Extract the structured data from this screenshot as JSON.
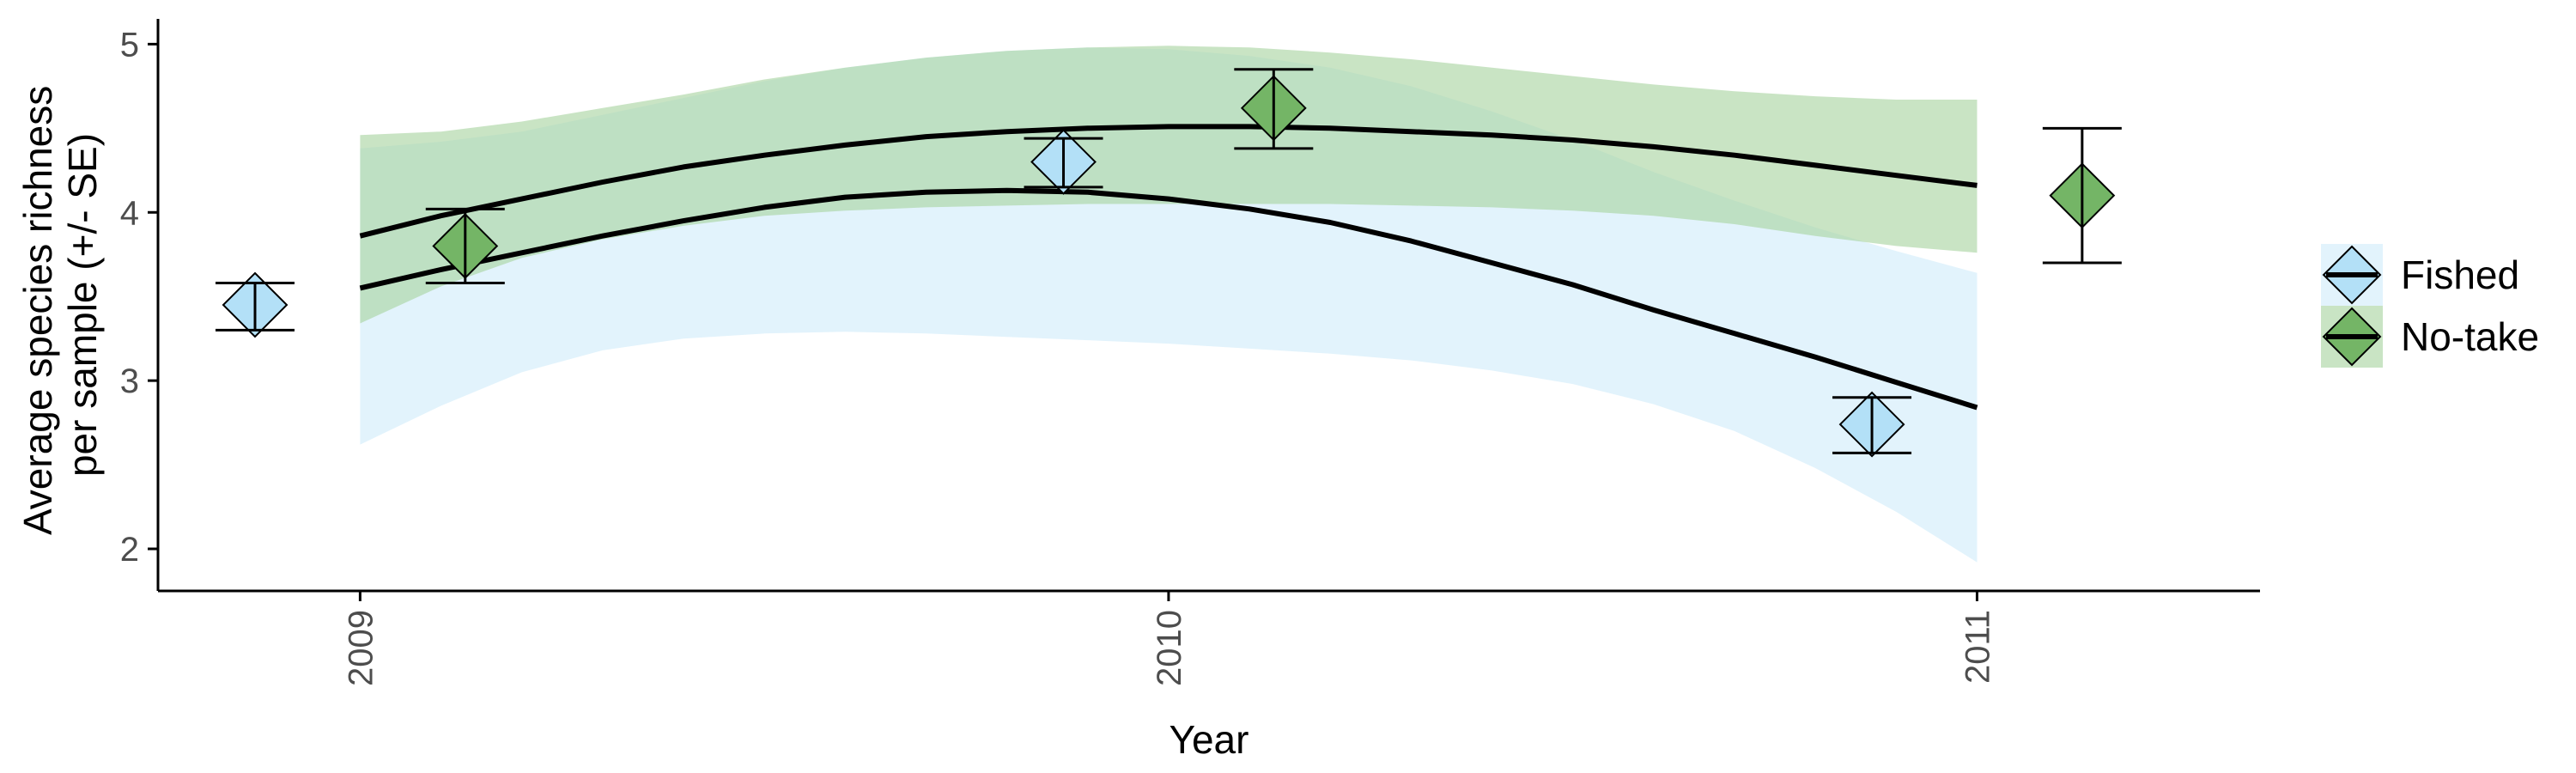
{
  "chart_data": {
    "type": "scatter",
    "xlabel": "Year",
    "ylabel_lines": [
      "Average species richness",
      "per sample (+/- SE)"
    ],
    "xlim": [
      2008.75,
      2011.35
    ],
    "ylim": [
      1.75,
      5.15
    ],
    "x_ticks": [
      2009,
      2010,
      2011
    ],
    "x_tick_labels": [
      "2009",
      "2010",
      "2011"
    ],
    "y_ticks": [
      2,
      3,
      4,
      5
    ],
    "y_tick_labels": [
      "2",
      "3",
      "4",
      "5"
    ],
    "grid": false,
    "legend_position": "right",
    "series": [
      {
        "name": "Fished",
        "fill": "#b3e0f7",
        "band_fill": "#d0ecfa",
        "points": [
          {
            "x": 2008.87,
            "y": 3.45,
            "se_low": 3.3,
            "se_high": 3.58
          },
          {
            "x": 2009.87,
            "y": 4.3,
            "se_low": 4.15,
            "se_high": 4.44
          },
          {
            "x": 2010.87,
            "y": 2.74,
            "se_low": 2.57,
            "se_high": 2.9
          }
        ],
        "fit_x": [
          2009.0,
          2009.1,
          2009.2,
          2009.3,
          2009.4,
          2009.5,
          2009.6,
          2009.7,
          2009.8,
          2009.9,
          2010.0,
          2010.1,
          2010.2,
          2010.3,
          2010.4,
          2010.5,
          2010.6,
          2010.7,
          2010.8,
          2010.9,
          2011.0
        ],
        "fit_y": [
          3.55,
          3.66,
          3.76,
          3.86,
          3.95,
          4.03,
          4.09,
          4.12,
          4.13,
          4.12,
          4.08,
          4.02,
          3.94,
          3.83,
          3.7,
          3.57,
          3.42,
          3.28,
          3.14,
          2.99,
          2.84
        ],
        "ci_low": [
          2.62,
          2.85,
          3.05,
          3.18,
          3.25,
          3.28,
          3.29,
          3.28,
          3.26,
          3.24,
          3.22,
          3.19,
          3.16,
          3.12,
          3.06,
          2.98,
          2.86,
          2.7,
          2.48,
          2.22,
          1.92
        ],
        "ci_high": [
          4.38,
          4.42,
          4.48,
          4.58,
          4.68,
          4.78,
          4.86,
          4.92,
          4.96,
          4.98,
          4.97,
          4.93,
          4.86,
          4.75,
          4.6,
          4.43,
          4.24,
          4.07,
          3.91,
          3.77,
          3.64
        ]
      },
      {
        "name": "No-take",
        "fill": "#74b566",
        "band_fill": "#a8d4a0",
        "points": [
          {
            "x": 2009.13,
            "y": 3.8,
            "se_low": 3.58,
            "se_high": 4.02
          },
          {
            "x": 2010.13,
            "y": 4.62,
            "se_low": 4.38,
            "se_high": 4.85
          },
          {
            "x": 2011.13,
            "y": 4.1,
            "se_low": 3.7,
            "se_high": 4.5
          }
        ],
        "fit_x": [
          2009.0,
          2009.1,
          2009.2,
          2009.3,
          2009.4,
          2009.5,
          2009.6,
          2009.7,
          2009.8,
          2009.9,
          2010.0,
          2010.1,
          2010.2,
          2010.3,
          2010.4,
          2010.5,
          2010.6,
          2010.7,
          2010.8,
          2010.9,
          2011.0
        ],
        "fit_y": [
          3.86,
          3.98,
          4.08,
          4.18,
          4.27,
          4.34,
          4.4,
          4.45,
          4.48,
          4.5,
          4.51,
          4.51,
          4.5,
          4.48,
          4.46,
          4.43,
          4.39,
          4.34,
          4.28,
          4.22,
          4.16
        ],
        "ci_low": [
          3.34,
          3.56,
          3.73,
          3.84,
          3.92,
          3.98,
          4.01,
          4.03,
          4.04,
          4.05,
          4.05,
          4.05,
          4.05,
          4.04,
          4.03,
          4.01,
          3.98,
          3.93,
          3.86,
          3.8,
          3.76
        ],
        "ci_high": [
          4.46,
          4.48,
          4.54,
          4.62,
          4.7,
          4.79,
          4.86,
          4.92,
          4.96,
          4.98,
          4.99,
          4.98,
          4.95,
          4.91,
          4.86,
          4.81,
          4.76,
          4.72,
          4.69,
          4.67,
          4.67
        ]
      }
    ]
  }
}
